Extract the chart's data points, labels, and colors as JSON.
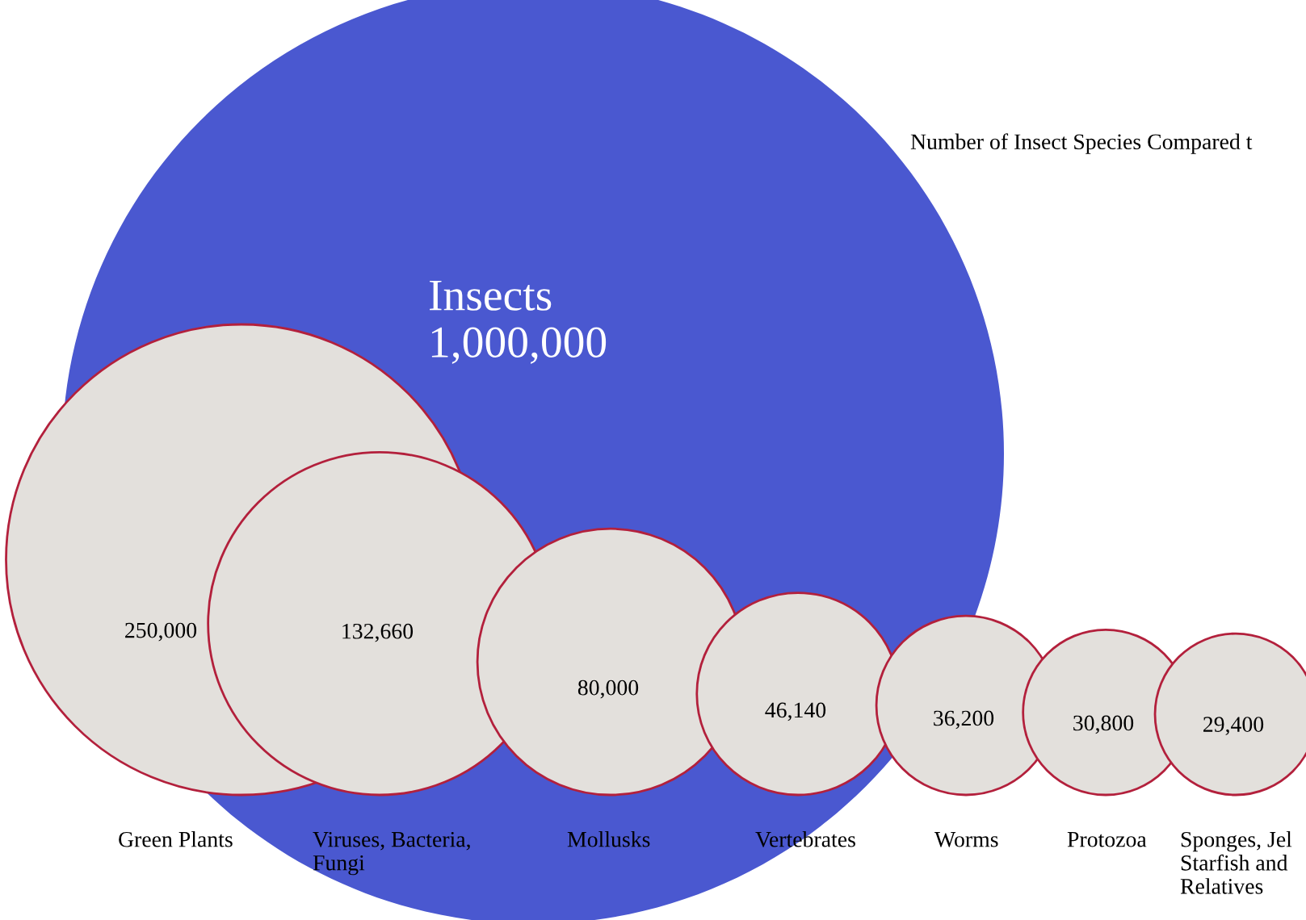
{
  "chart_data": {
    "type": "other",
    "title": "Number of Insect Species Compared t",
    "categories": [
      "Insects",
      "Green Plants",
      "Viruses, Bacteria,\nFungi",
      "Mollusks",
      "Vertebrates",
      "Worms",
      "Protozoa",
      "Sponges, Jel\nStarfish and\nRelatives"
    ],
    "values": [
      1000000,
      250000,
      132660,
      80000,
      46140,
      36200,
      30800,
      29400
    ],
    "value_labels": [
      "1,000,000",
      "250,000",
      "132,660",
      "80,000",
      "46,140",
      "36,200",
      "30,800",
      "29,400"
    ],
    "colors": [
      "#4a58d0",
      "#e3e0dc",
      "#e3e0dc",
      "#e3e0dc",
      "#e3e0dc",
      "#e3e0dc",
      "#e3e0dc",
      "#e3e0dc"
    ]
  }
}
